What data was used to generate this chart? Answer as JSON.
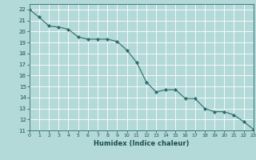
{
  "x": [
    0,
    1,
    2,
    3,
    4,
    5,
    6,
    7,
    8,
    9,
    10,
    11,
    12,
    13,
    14,
    15,
    16,
    17,
    18,
    19,
    20,
    21,
    22,
    23
  ],
  "y": [
    22.0,
    21.3,
    20.5,
    20.4,
    20.2,
    19.5,
    19.3,
    19.3,
    19.3,
    19.1,
    18.3,
    17.2,
    15.4,
    14.5,
    14.7,
    14.7,
    13.9,
    13.9,
    13.0,
    12.7,
    12.7,
    12.4,
    11.8,
    11.1
  ],
  "xlabel": "Humidex (Indice chaleur)",
  "line_color": "#2d6b6b",
  "marker_color": "#2d6b6b",
  "bg_color": "#b3d9d9",
  "grid_color": "#ffffff",
  "xlim": [
    0,
    23
  ],
  "ylim": [
    11,
    22.5
  ],
  "yticks": [
    11,
    12,
    13,
    14,
    15,
    16,
    17,
    18,
    19,
    20,
    21,
    22
  ],
  "xticks": [
    0,
    1,
    2,
    3,
    4,
    5,
    6,
    7,
    8,
    9,
    10,
    11,
    12,
    13,
    14,
    15,
    16,
    17,
    18,
    19,
    20,
    21,
    22,
    23
  ]
}
